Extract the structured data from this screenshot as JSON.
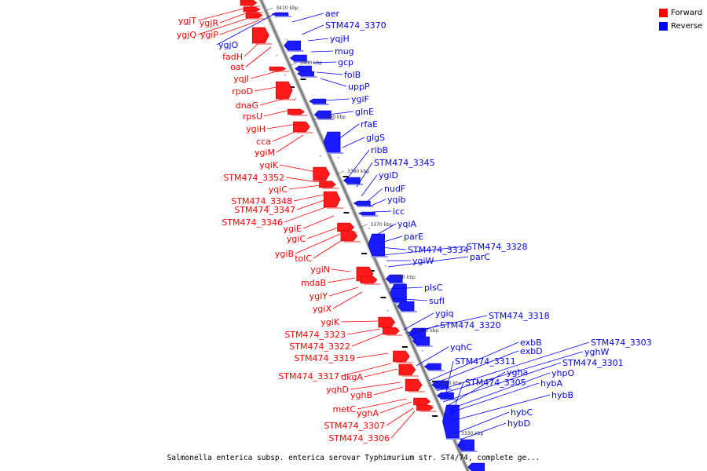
{
  "legend": [
    {
      "label": "Forward",
      "color": "#ff0000"
    },
    {
      "label": "Reverse",
      "color": "#0000ff"
    }
  ],
  "caption": "Salmonella enterica subsp. enterica serovar Typhimurium str. ST4/74, complete ge...",
  "ticks": [
    "3410 kbp",
    "3400 kbp",
    "3390 kbp",
    "3380 kbp",
    "3370 kbp",
    "3360 kbp",
    "3350 kbp",
    "3340 kbp",
    "3330 kbp"
  ],
  "forward_labels": [
    "ygjT",
    "ygjR",
    "ygjQ",
    "ygiP",
    "fadH",
    "oat",
    "yqjI",
    "rpoD",
    "dnaG",
    "rpsU",
    "ygiH",
    "cca",
    "ygiM",
    "yqiK",
    "STM474_3352",
    "yqiC",
    "STM474_3348",
    "STM474_3347",
    "STM474_3346",
    "ygiE",
    "ygiC",
    "ygiB",
    "tolC",
    "ygiN",
    "mdaB",
    "ygiY",
    "ygiX",
    "ygiK",
    "STM474_3323",
    "STM474_3322",
    "STM474_3319",
    "STM474_3317",
    "dkgA",
    "yqhD",
    "yghB",
    "metC",
    "yghA",
    "STM474_3307",
    "STM474_3306"
  ],
  "reverse_labels": [
    "aer",
    "STM474_3370",
    "ygjO",
    "yqjH",
    "mug",
    "gcp",
    "folB",
    "uppP",
    "ygiF",
    "glnE",
    "rfaE",
    "glgS",
    "ribB",
    "STM474_3345",
    "ygiD",
    "nudF",
    "yqib",
    "icc",
    "yqiA",
    "parE",
    "STM474_3334",
    "STM474_3328",
    "ygiW",
    "parC",
    "plsC",
    "sufI",
    "ygiq",
    "STM474_3318",
    "STM474_3320",
    "yqhC",
    "exbB",
    "exbD",
    "STM474_3303",
    "yghW",
    "STM474_3311",
    "STM474_3301",
    "ygha",
    "yhpO",
    "hybA",
    "STM474_3305",
    "hybB",
    "hybC",
    "hybD"
  ]
}
